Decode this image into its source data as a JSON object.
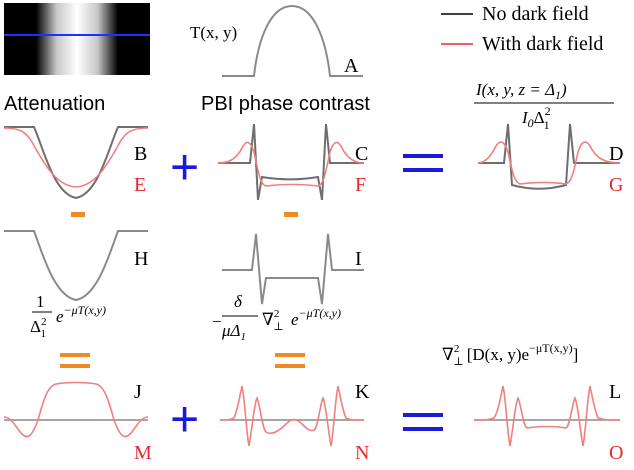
{
  "legend": {
    "no_dark_field": "No dark field",
    "with_dark_field": "With dark field",
    "colors": {
      "no_dark_field": "#000000",
      "with_dark_field": "#e8282e"
    }
  },
  "headers": {
    "attenuation": "Attenuation",
    "pbi": "PBI phase contrast"
  },
  "panel_labels": {
    "A": "A",
    "B": "B",
    "C": "C",
    "D": "D",
    "E": "E",
    "F": "F",
    "G": "G",
    "H": "H",
    "I": "I",
    "J": "J",
    "K": "K",
    "L": "L",
    "M": "M",
    "N": "N",
    "O": "O"
  },
  "math": {
    "T": "T(x, y)",
    "intensity_num": "I(x, y, z = Δ",
    "intensity_num_sub": "1",
    "intensity_num_close": ")",
    "intensity_den": "I",
    "intensity_den_sub": "0",
    "intensity_den_delta": "Δ",
    "intensity_den_sup": "2",
    "intensity_den_sub2": "1",
    "h_num": "1",
    "h_den": "Δ",
    "h_den_sup": "2",
    "h_den_sub": "1",
    "h_exp_base": "e",
    "h_exp": "−μT(x,y)",
    "i_minus": "−",
    "i_num": "δ",
    "i_den": "μΔ",
    "i_den_sub": "1",
    "i_nabla": "∇",
    "i_nabla_sup": "2",
    "i_nabla_sub": "⊥",
    "i_exp_base": "e",
    "i_exp": "−μT(x,y)",
    "l_nabla": "∇",
    "l_nabla_sup": "2",
    "l_nabla_sub": "⊥",
    "l_body": "[D(x, y)e",
    "l_exp": "−μT(x,y)",
    "l_close": "]"
  },
  "operators": {
    "plus": "+",
    "equals": "="
  },
  "colors": {
    "operator_blue": "#1a1adb",
    "operator_orange": "#f08a24",
    "curve_gray": "#8a8a8a",
    "curve_red": "#f08080",
    "profile_line": "#1f2fff"
  }
}
